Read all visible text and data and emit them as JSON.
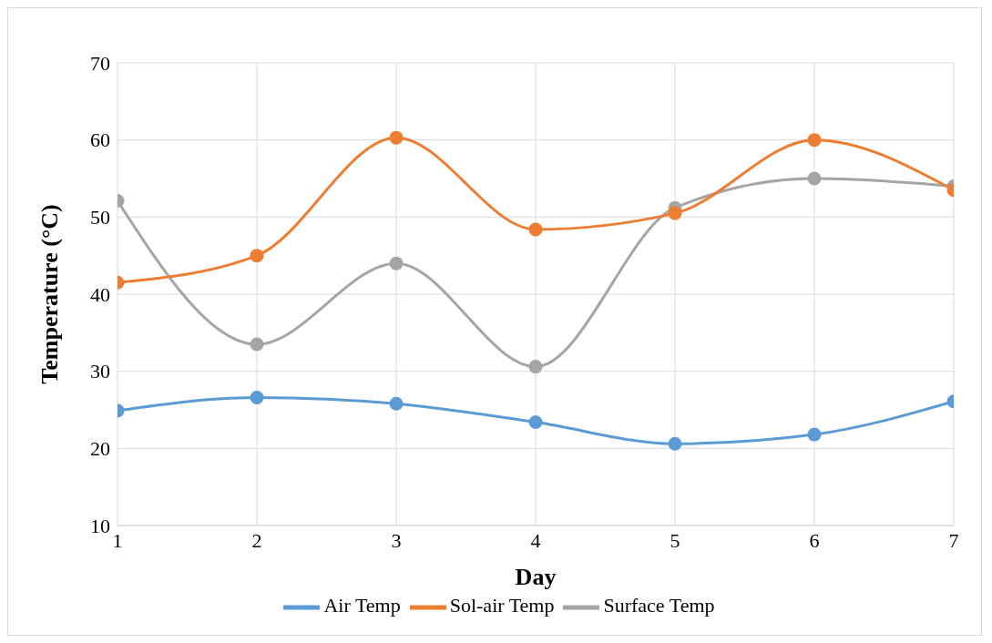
{
  "chart_data": {
    "type": "line",
    "xlabel": "Day",
    "ylabel": "Temperature (°C)",
    "x": [
      1,
      2,
      3,
      4,
      5,
      6,
      7
    ],
    "xlim": [
      1,
      7
    ],
    "xticks": [
      1,
      2,
      3,
      4,
      5,
      6,
      7
    ],
    "ylim": [
      10,
      70
    ],
    "yticks": [
      10,
      20,
      30,
      40,
      50,
      60,
      70
    ],
    "grid": true,
    "legend": "bottom",
    "marker": "circle",
    "line_style": "solid",
    "series": [
      {
        "name": "Air Temp",
        "color": "#5b9bd5",
        "values": [
          24.9,
          26.6,
          25.8,
          23.4,
          20.6,
          21.8,
          26.1
        ]
      },
      {
        "name": "Sol-air Temp",
        "color": "#ed7d31",
        "values": [
          41.5,
          45,
          60.3,
          48.4,
          50.5,
          60,
          53.5
        ]
      },
      {
        "name": "Surface Temp",
        "color": "#a5a5a5",
        "values": [
          52.1,
          33.5,
          44,
          30.6,
          51.2,
          55,
          54
        ]
      }
    ]
  }
}
